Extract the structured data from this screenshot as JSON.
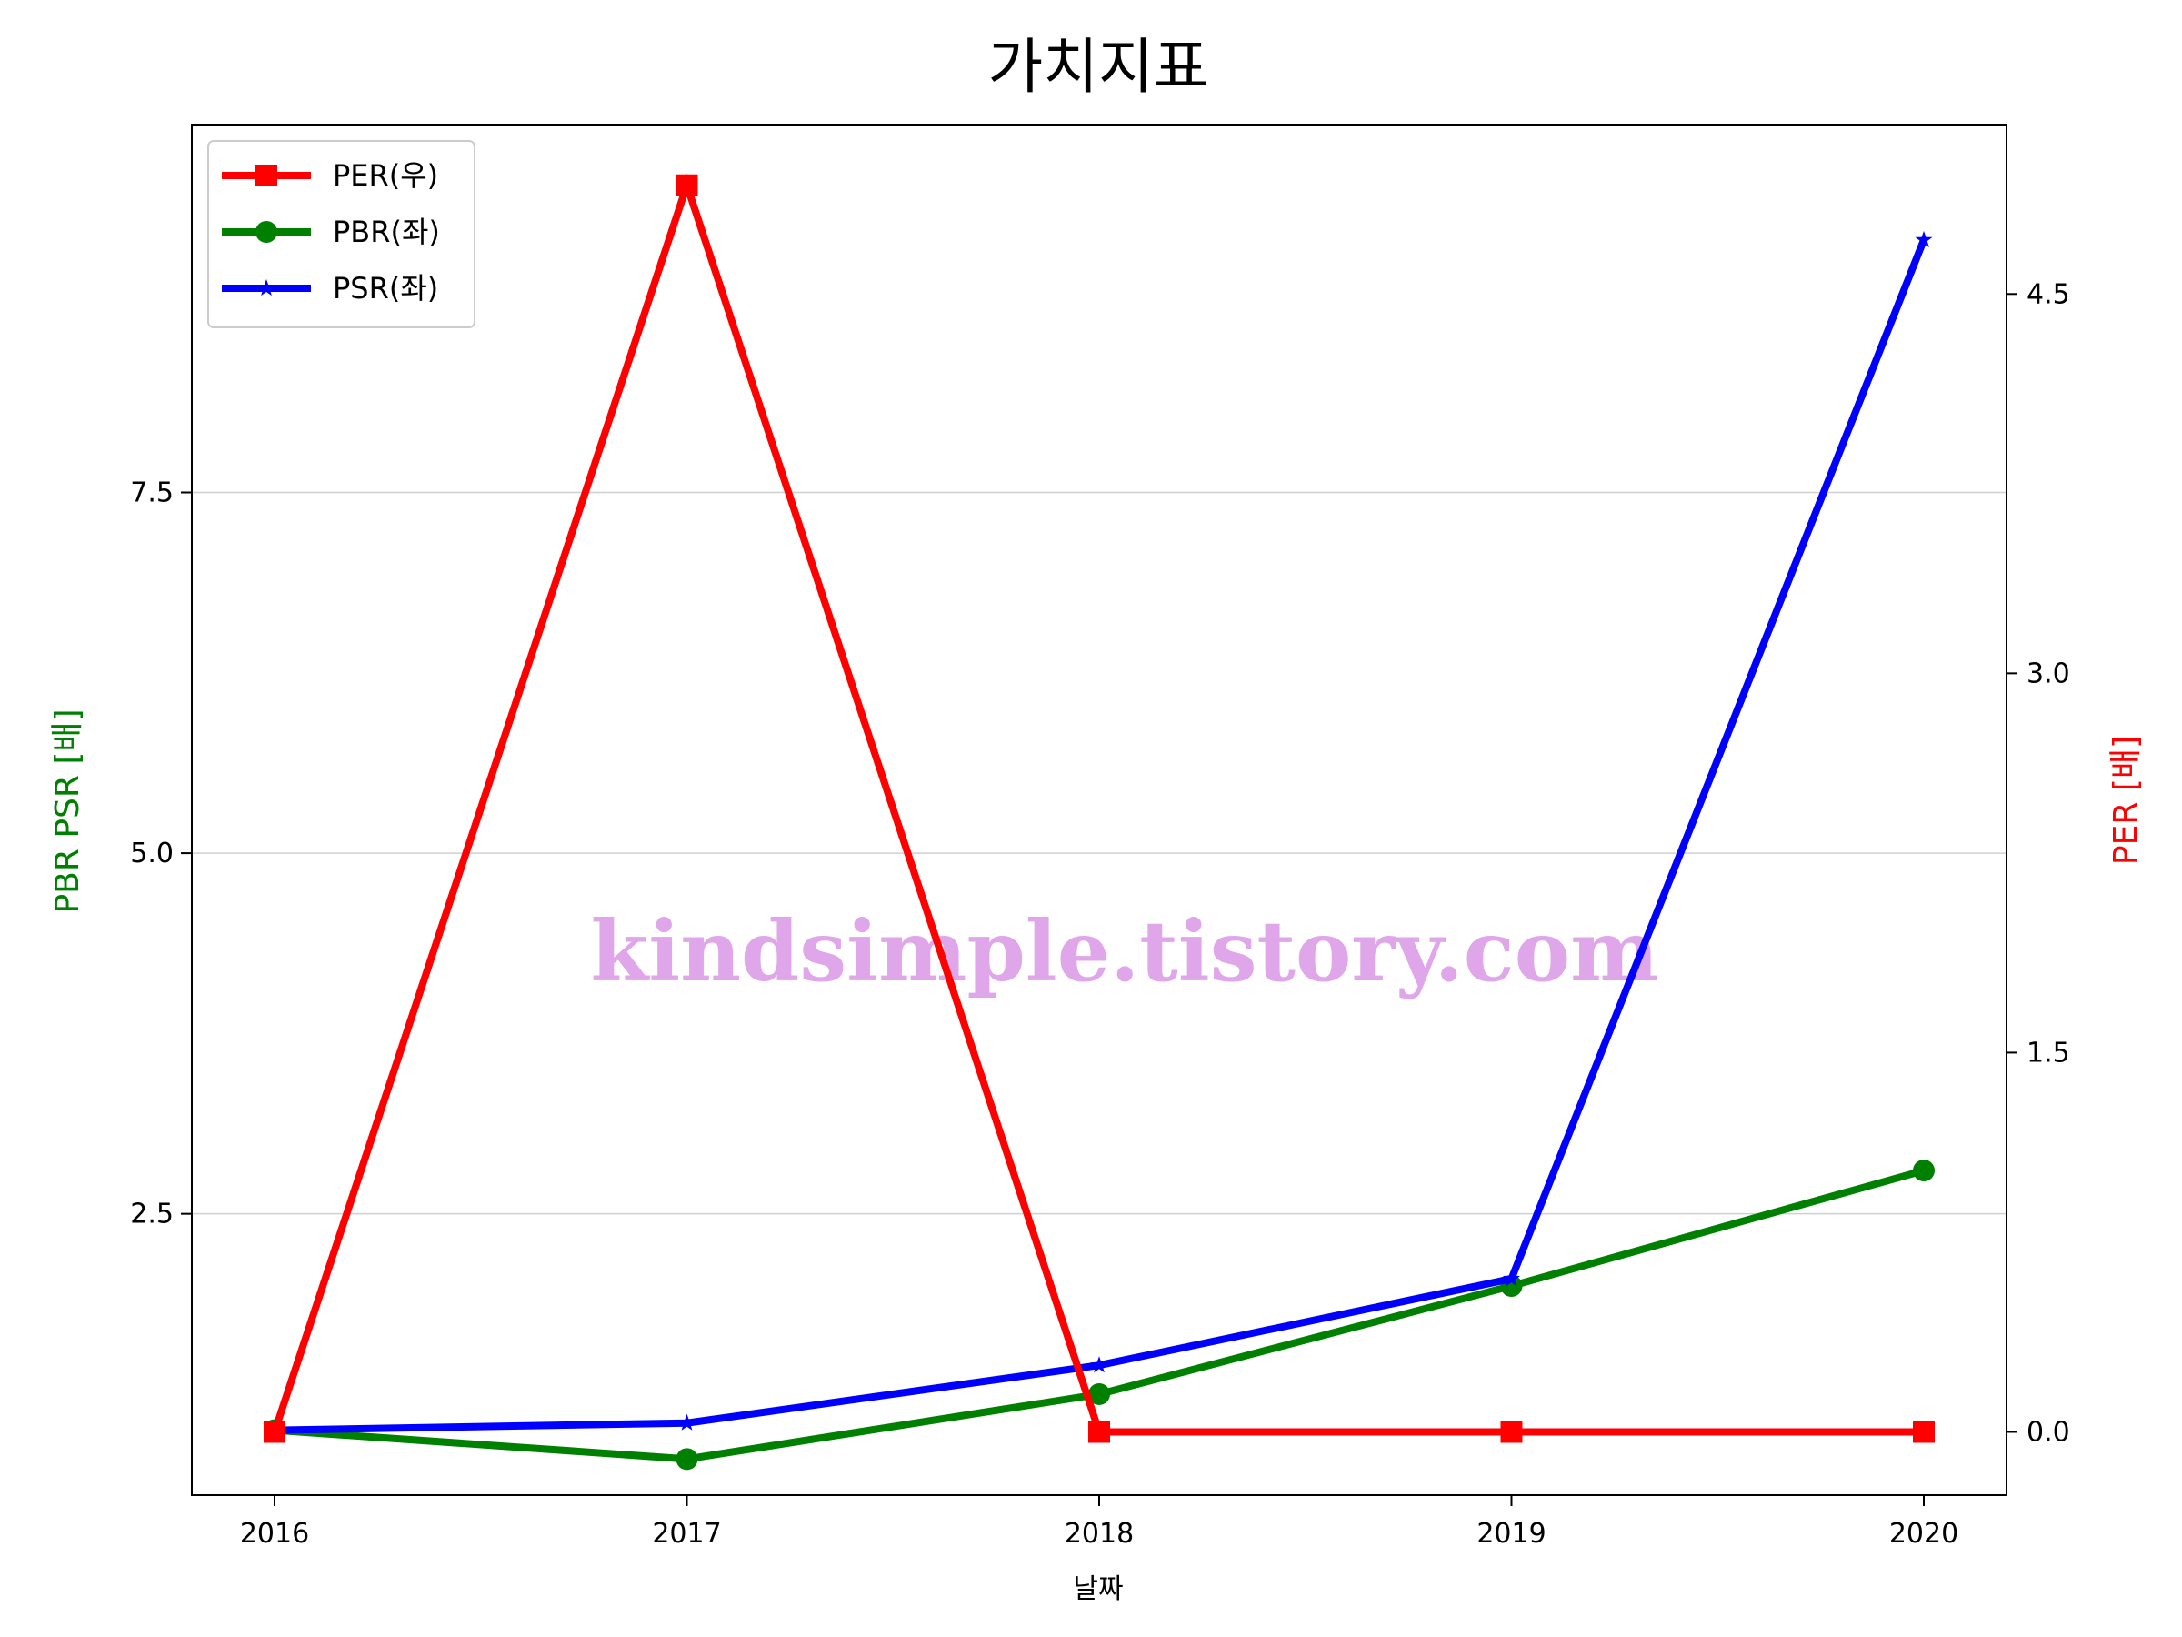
{
  "chart_data": {
    "type": "line",
    "title": "가치지표",
    "xlabel": "날짜",
    "ylabel_left": "PBR PSR [배]",
    "ylabel_right": "PER [배]",
    "categories": [
      "2016",
      "2017",
      "2018",
      "2019",
      "2020"
    ],
    "left_axis": {
      "ylim": [
        0.55,
        10.05
      ],
      "ticks": [
        "2.5",
        "5.0",
        "7.5"
      ],
      "tick_values": [
        2.5,
        5.0,
        7.5
      ],
      "color": "#008000"
    },
    "right_axis": {
      "ylim": [
        -0.25,
        5.17
      ],
      "ticks": [
        "0.0",
        "1.5",
        "3.0",
        "4.5"
      ],
      "tick_values": [
        0.0,
        1.5,
        3.0,
        4.5
      ],
      "color": "#ff0000"
    },
    "series": [
      {
        "name": "PER(우)",
        "axis": "right",
        "color": "#ff0000",
        "marker": "square",
        "values": [
          0.0,
          4.93,
          0.0,
          0.0,
          0.0
        ]
      },
      {
        "name": "PBR(좌)",
        "axis": "left",
        "color": "#008000",
        "marker": "circle",
        "values": [
          1.0,
          0.8,
          1.25,
          2.0,
          2.8
        ]
      },
      {
        "name": "PSR(좌)",
        "axis": "left",
        "color": "#0000ff",
        "marker": "star",
        "values": [
          1.0,
          1.05,
          1.45,
          2.05,
          9.25
        ]
      }
    ],
    "grid": "horizontal (left axis)",
    "legend_position": "top-left"
  },
  "watermark": {
    "text": "kindsimple.tistory.com",
    "color": "#e0a6ea"
  }
}
